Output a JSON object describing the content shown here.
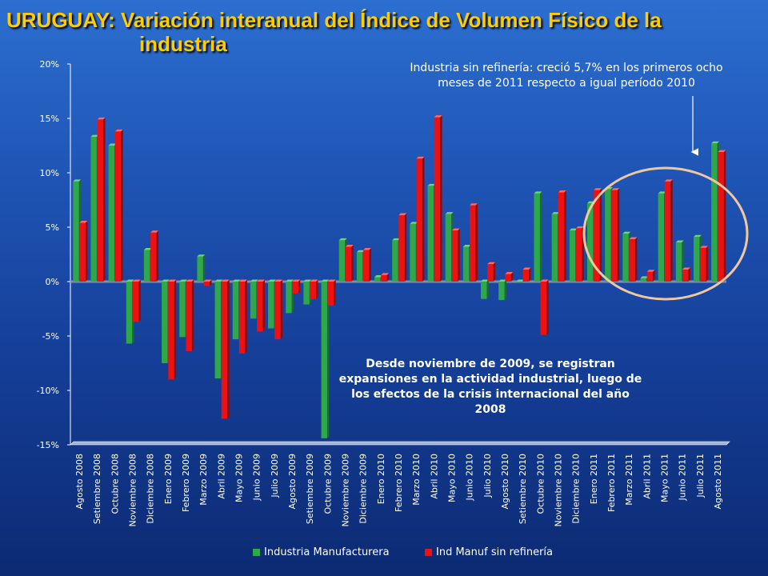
{
  "title": {
    "line1": "URUGUAY: Variación interanual del Índice de Volumen Físico de la",
    "line2": "industria"
  },
  "annotations": {
    "top_note": "Industria sin refinería: creció 5,7% en los primeros ocho meses de 2011 respecto a igual período 2010",
    "middle_note": "Desde noviembre de 2009, se registran expansiones en la actividad industrial, luego de los efectos de la crisis internacional del año 2008"
  },
  "colors": {
    "series_green": "#2ea84a",
    "series_red": "#ee1111",
    "circle": "#f0c8a0",
    "axis": "#ffffff"
  },
  "chart_data": {
    "type": "bar",
    "ylim": [
      -15,
      20
    ],
    "yticks": [
      -15,
      -10,
      -5,
      0,
      5,
      10,
      15,
      20
    ],
    "ytick_labels": [
      "-15%",
      "-10%",
      "-5%",
      "0%",
      "5%",
      "10%",
      "15%",
      "20%"
    ],
    "grid": false,
    "legend_position": "bottom",
    "categories": [
      "Agosto 2008",
      "Setiembre 2008",
      "Octubre 2008",
      "Noviembre 2008",
      "Diciembre 2008",
      "Enero 2009",
      "Febrero 2009",
      "Marzo 2009",
      "Abril 2009",
      "Mayo 2009",
      "Junio 2009",
      "Julio 2009",
      "Agosto 2009",
      "Setiembre 2009",
      "Octubre 2009",
      "Noviembre 2009",
      "Diciembre 2009",
      "Enero 2010",
      "Febrero 2010",
      "Marzo 2010",
      "Abril 2010",
      "Mayo 2010",
      "Junio 2010",
      "Julio 2010",
      "Agosto 2010",
      "Setiembre 2010",
      "Octubre 2010",
      "Noviembre 2010",
      "Diciembre 2010",
      "Enero 2011",
      "Febrero 2011",
      "Marzo 2011",
      "Abril 2011",
      "Mayo 2011",
      "Junio 2011",
      "Julio 2011",
      "Agosto 2011"
    ],
    "series": [
      {
        "name": "Industria Manufacturera",
        "values": [
          9.2,
          13.3,
          12.5,
          -5.7,
          2.9,
          -7.5,
          -5.1,
          2.3,
          -8.9,
          -5.3,
          -3.4,
          -4.3,
          -2.9,
          -2.1,
          -14.4,
          3.8,
          2.7,
          0.4,
          3.8,
          5.3,
          8.8,
          6.2,
          3.2,
          -1.6,
          -1.7,
          0.0,
          8.1,
          6.2,
          4.7,
          7.2,
          8.5,
          4.4,
          0.3,
          8.1,
          3.6,
          4.1,
          12.7
        ]
      },
      {
        "name": "Ind Manuf sin refinería",
        "values": [
          5.4,
          14.9,
          13.8,
          -3.7,
          4.5,
          -9.0,
          -6.4,
          -0.4,
          -12.6,
          -6.6,
          -4.6,
          -5.3,
          -1.1,
          -1.6,
          -2.2,
          3.2,
          2.9,
          0.6,
          6.1,
          11.3,
          15.1,
          4.7,
          7.0,
          1.6,
          0.7,
          1.1,
          -4.9,
          8.2,
          4.9,
          8.4,
          8.4,
          3.9,
          0.9,
          9.2,
          1.1,
          3.1,
          11.9
        ]
      }
    ]
  }
}
